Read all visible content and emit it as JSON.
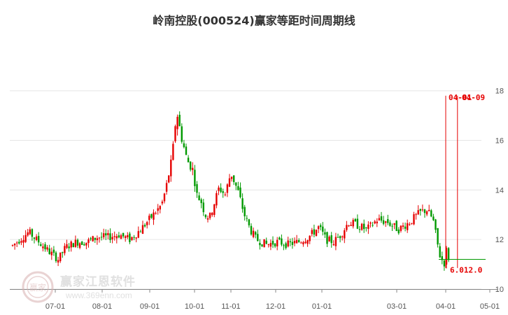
{
  "chart_data": {
    "type": "candlestick",
    "title": "岭南控股(000524)赢家等距时间周期线",
    "xlabel": "",
    "ylabel": "",
    "x_ticks": [
      "07-01",
      "08-01",
      "09-01",
      "10-01",
      "11-01",
      "12-01",
      "01-01",
      "03-01",
      "04-01",
      "05-01"
    ],
    "y_ticks": [
      10,
      12,
      14,
      16,
      18
    ],
    "ylim": [
      10,
      18.5
    ],
    "grid": "horizontal",
    "colors": {
      "up": "#e60000",
      "down": "#009900",
      "cycle_line": "#e60000",
      "support_line": "#009900"
    },
    "price_path": [
      [
        "06-15",
        11.6
      ],
      [
        "06-22",
        12.3
      ],
      [
        "06-29",
        11.5
      ],
      [
        "07-03",
        11.2
      ],
      [
        "07-08",
        11.7
      ],
      [
        "07-15",
        11.9
      ],
      [
        "07-22",
        11.9
      ],
      [
        "07-29",
        12.1
      ],
      [
        "08-05",
        12.1
      ],
      [
        "08-12",
        12.2
      ],
      [
        "08-19",
        12.0
      ],
      [
        "08-26",
        12.4
      ],
      [
        "09-02",
        12.9
      ],
      [
        "09-09",
        13.4
      ],
      [
        "09-12",
        14.1
      ],
      [
        "09-16",
        15.3
      ],
      [
        "09-19",
        17.2
      ],
      [
        "09-22",
        16.2
      ],
      [
        "09-26",
        15.2
      ],
      [
        "09-30",
        14.8
      ],
      [
        "10-03",
        13.8
      ],
      [
        "10-07",
        13.5
      ],
      [
        "10-10",
        13.0
      ],
      [
        "10-14",
        12.9
      ],
      [
        "10-18",
        13.5
      ],
      [
        "10-22",
        14.1
      ],
      [
        "10-27",
        13.8
      ],
      [
        "11-01",
        14.7
      ],
      [
        "11-06",
        13.9
      ],
      [
        "11-10",
        13.0
      ],
      [
        "11-14",
        12.4
      ],
      [
        "11-18",
        12.0
      ],
      [
        "11-25",
        11.8
      ],
      [
        "12-02",
        11.9
      ],
      [
        "12-09",
        11.8
      ],
      [
        "12-16",
        11.9
      ],
      [
        "12-23",
        12.1
      ],
      [
        "12-30",
        12.5
      ],
      [
        "01-05",
        12.0
      ],
      [
        "01-12",
        11.9
      ],
      [
        "01-19",
        12.2
      ],
      [
        "01-26",
        12.7
      ],
      [
        "02-02",
        12.6
      ],
      [
        "02-09",
        12.4
      ],
      [
        "02-16",
        12.8
      ],
      [
        "02-23",
        12.7
      ],
      [
        "03-02",
        12.4
      ],
      [
        "03-09",
        12.7
      ],
      [
        "03-16",
        13.1
      ],
      [
        "03-20",
        13.2
      ],
      [
        "03-24",
        12.8
      ],
      [
        "03-28",
        11.4
      ],
      [
        "03-31",
        11.0
      ],
      [
        "04-01",
        11.7
      ],
      [
        "04-02",
        11.4
      ],
      [
        "04-04",
        11.1
      ]
    ],
    "annotations": [
      {
        "text": "04-01",
        "x": "04-01"
      },
      {
        "text": "04-09",
        "x": "04-09"
      }
    ],
    "support_label": "6.012.0",
    "support_level": 11.2
  },
  "watermark": {
    "name": "赢家江恩软件",
    "url": "www.369enn.com",
    "seal": "赢家"
  }
}
